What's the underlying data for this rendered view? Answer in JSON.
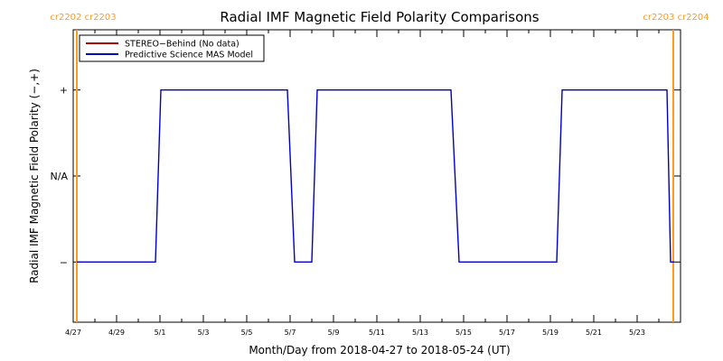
{
  "chart_data": {
    "type": "line",
    "title": "Radial IMF Magnetic Field Polarity Comparisons",
    "xlabel": "Month/Day from 2018-04-27 to 2018-05-24 (UT)",
    "ylabel": "Radial IMF Magnetic Field Polarity (−,+)",
    "xlim": [
      "2018-04-27",
      "2018-05-25"
    ],
    "ylim": [
      -1.7,
      1.7
    ],
    "grid": false,
    "legend_position": "top-left",
    "x_ticks": [
      {
        "label": "4/27",
        "date": "2018-04-27"
      },
      {
        "label": "4/29",
        "date": "2018-04-29"
      },
      {
        "label": "5/1",
        "date": "2018-05-01"
      },
      {
        "label": "5/3",
        "date": "2018-05-03"
      },
      {
        "label": "5/5",
        "date": "2018-05-05"
      },
      {
        "label": "5/7",
        "date": "2018-05-07"
      },
      {
        "label": "5/9",
        "date": "2018-05-09"
      },
      {
        "label": "5/11",
        "date": "2018-05-11"
      },
      {
        "label": "5/13",
        "date": "2018-05-13"
      },
      {
        "label": "5/15",
        "date": "2018-05-15"
      },
      {
        "label": "5/17",
        "date": "2018-05-17"
      },
      {
        "label": "5/19",
        "date": "2018-05-19"
      },
      {
        "label": "5/21",
        "date": "2018-05-21"
      },
      {
        "label": "5/23",
        "date": "2018-05-23"
      }
    ],
    "y_ticks": [
      {
        "label": "+",
        "value": 1
      },
      {
        "label": "N/A",
        "value": 0
      },
      {
        "label": "−",
        "value": -1
      }
    ],
    "rotations": [
      {
        "label": "cr2202 cr2203",
        "date": "2018-04-27T04:00",
        "side": "left"
      },
      {
        "label": "cr2203 cr2204",
        "date": "2018-05-24T16:00",
        "side": "right"
      }
    ],
    "series": [
      {
        "name": "STEREO−Behind (No data)",
        "color": "#b00000",
        "points": []
      },
      {
        "name": "Predictive Science MAS Model",
        "color": "#0000cc",
        "points": [
          {
            "x": "2018-04-27T04:00",
            "y": -1
          },
          {
            "x": "2018-04-30T19:00",
            "y": -1
          },
          {
            "x": "2018-05-01T01:00",
            "y": 1
          },
          {
            "x": "2018-05-06T21:00",
            "y": 1
          },
          {
            "x": "2018-05-07T05:00",
            "y": -1
          },
          {
            "x": "2018-05-08T00:00",
            "y": -1
          },
          {
            "x": "2018-05-08T06:00",
            "y": 1
          },
          {
            "x": "2018-05-14T10:00",
            "y": 1
          },
          {
            "x": "2018-05-14T19:00",
            "y": -1
          },
          {
            "x": "2018-05-19T07:00",
            "y": -1
          },
          {
            "x": "2018-05-19T13:00",
            "y": 1
          },
          {
            "x": "2018-05-24T09:00",
            "y": 1
          },
          {
            "x": "2018-05-24T13:00",
            "y": -1
          },
          {
            "x": "2018-05-24T17:00",
            "y": -1
          }
        ]
      }
    ]
  },
  "colors": {
    "axes": "#000000",
    "rotation_marker": "#ff9a1f",
    "background": "#ffffff"
  }
}
